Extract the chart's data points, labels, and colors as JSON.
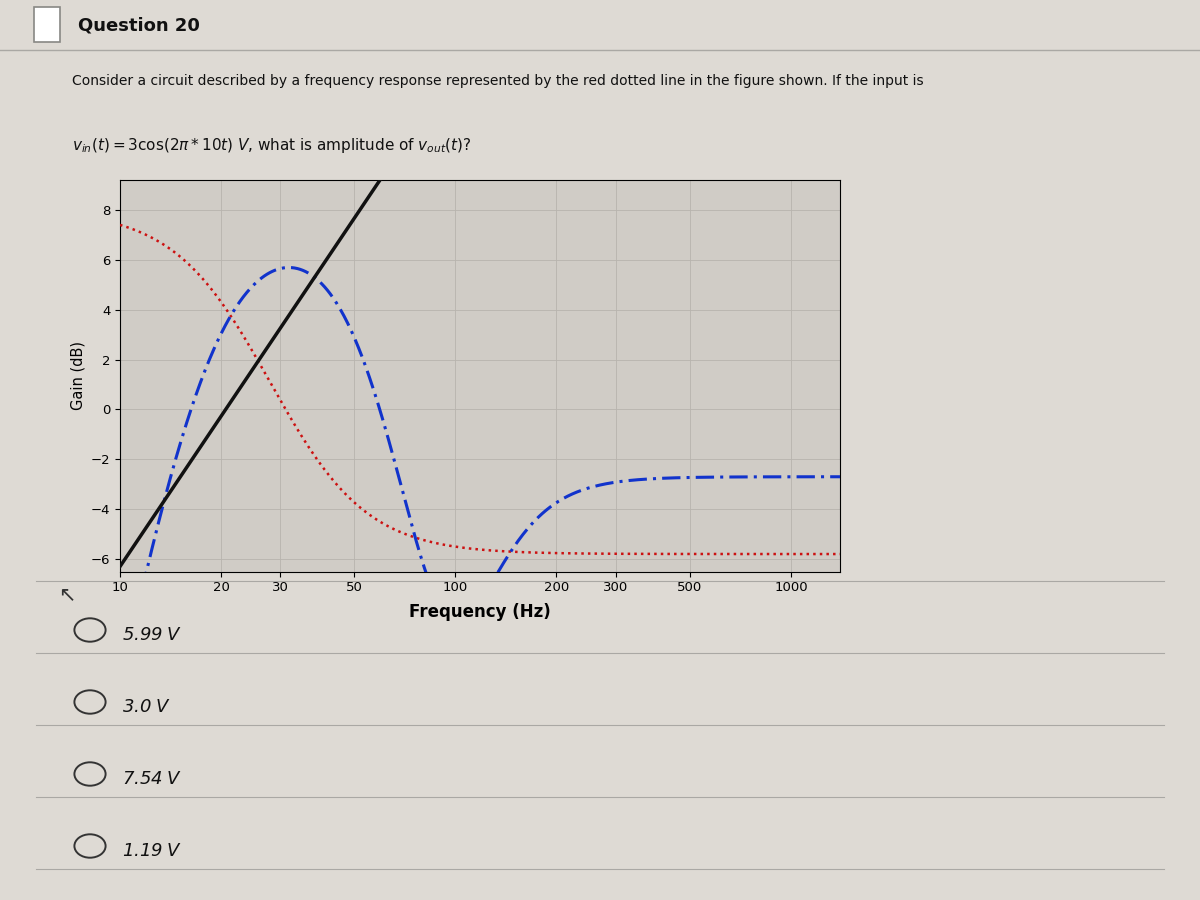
{
  "title": "Question 20",
  "q_line1": "Consider a circuit described by a frequency response represented by the red dotted line in the figure shown. If the input is",
  "q_line2_plain": ", what is amplitude of ",
  "xlabel": "Frequency (Hz)",
  "ylabel": "Gain (dB)",
  "ylim": [
    -6.5,
    9.2
  ],
  "xlim": [
    10,
    1400
  ],
  "xticks": [
    10,
    20,
    30,
    50,
    100,
    200,
    300,
    500,
    1000
  ],
  "yticks": [
    -6,
    -4,
    -2,
    0,
    2,
    4,
    6,
    8
  ],
  "choices": [
    "5.99 V",
    "3.0 V",
    "7.54 V",
    "1.19 V"
  ],
  "bg_color": "#dedad4",
  "plot_bg_color": "#d0ccc6",
  "grid_color": "#b8b4ae",
  "red_color": "#cc1111",
  "blue_color": "#1133cc",
  "black_color": "#111111",
  "title_bar_color": "#c4c0ba",
  "sep_line_color": "#aaa8a4"
}
